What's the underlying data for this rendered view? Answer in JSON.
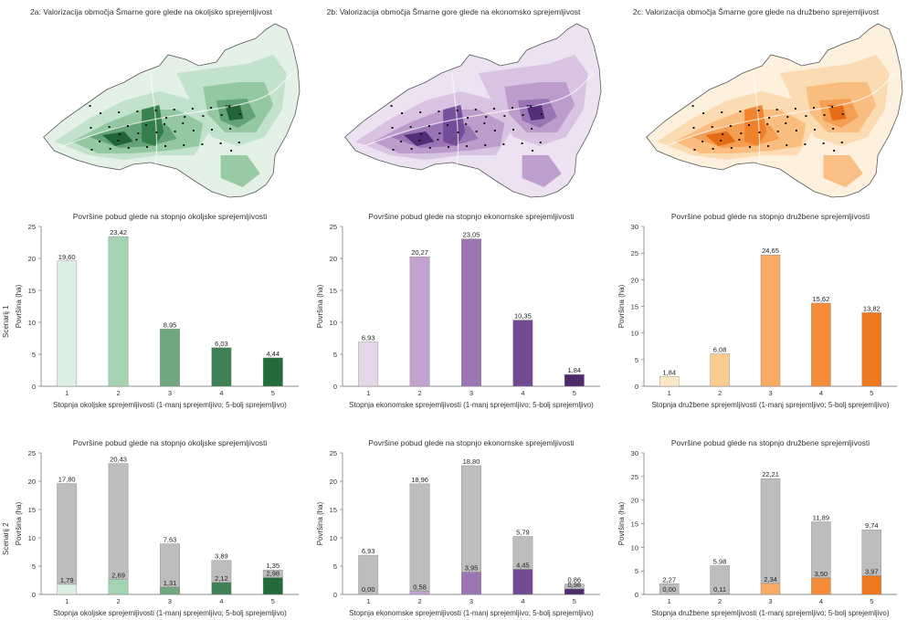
{
  "maps": [
    {
      "title": "2a: Valorizacija območja Šmarne gore glede na okoljsko sprejemljivost",
      "colors": [
        "#e3f1e7",
        "#bfe0c8",
        "#8fc59f",
        "#5e9f72",
        "#2f7a45",
        "#1a5e2f"
      ]
    },
    {
      "title": "2b: Valorizacija območja Šmarne gore glede na ekonomsko sprejemljivost",
      "colors": [
        "#ede2f1",
        "#d6c0e0",
        "#b998ca",
        "#9670b2",
        "#6f4795",
        "#4b2670"
      ]
    },
    {
      "title": "2c: Valorizacija območja Šmarne gore glede na družbeno sprejemljivost",
      "colors": [
        "#fdf0dc",
        "#fbd9ad",
        "#f8b97a",
        "#f39a4d",
        "#ee7d24",
        "#e2660f"
      ]
    }
  ],
  "row_labels": {
    "scenario1": "Scenarij 1",
    "scenario2": "Scenarij 2"
  },
  "chart_data": [
    {
      "type": "bar",
      "title": "Površine pobud glede na stopnjo okoljske sprejemljivosti",
      "xlabel": "Stopnja okoljske sprejemljivosti (1-manj sprejemljivo; 5-bolj sprejemljivo)",
      "ylabel": "Površina (ha)",
      "ylim": [
        0,
        25
      ],
      "yticks": [
        0,
        5,
        10,
        15,
        20,
        25
      ],
      "categories": [
        "1",
        "2",
        "3",
        "4",
        "5"
      ],
      "values": [
        19.6,
        23.42,
        8.95,
        6.03,
        4.44
      ],
      "labels": [
        "19,60",
        "23,42",
        "8,95",
        "6,03",
        "4,44"
      ],
      "colors": [
        "#ddefe2",
        "#a4d3b1",
        "#6fa77f",
        "#3e8154",
        "#246b3a"
      ]
    },
    {
      "type": "bar",
      "title": "Površine pobud glede na stopnjo ekonomske sprejemljivosti",
      "xlabel": "Stopnja ekonomske sprejemljivosti (1-manj sprejemljivo; 5-bolj sprejemljivo)",
      "ylabel": "Površina (ha)",
      "ylim": [
        0,
        25
      ],
      "yticks": [
        0,
        5,
        10,
        15,
        20,
        25
      ],
      "categories": [
        "1",
        "2",
        "3",
        "4",
        "5"
      ],
      "values": [
        6.93,
        20.27,
        23.05,
        10.35,
        1.84
      ],
      "labels": [
        "6,93",
        "20,27",
        "23,05",
        "10,35",
        "1,84"
      ],
      "colors": [
        "#e6d6ea",
        "#c3a2cf",
        "#9b76b2",
        "#734a92",
        "#4f2a6b"
      ]
    },
    {
      "type": "bar",
      "title": "Površine pobud glede na stopnjo družbene sprejemljivosti",
      "xlabel": "Stopnja družbene sprejemljivosti (1-manj sprejemljivo; 5-bolj sprejemljivo)",
      "ylabel": "Površina (ha)",
      "ylim": [
        0,
        30
      ],
      "yticks": [
        0,
        5,
        10,
        15,
        20,
        25,
        30
      ],
      "categories": [
        "1",
        "2",
        "3",
        "4",
        "5"
      ],
      "values": [
        1.84,
        6.08,
        24.65,
        15.62,
        13.82
      ],
      "labels": [
        "1,84",
        "6,08",
        "24,65",
        "15,62",
        "13,82"
      ],
      "colors": [
        "#fde7c7",
        "#fbcb8f",
        "#f8aa63",
        "#f48c3a",
        "#ee7820"
      ]
    },
    {
      "type": "bar",
      "stacked": true,
      "title": "Površine pobud glede na stopnjo okoljske sprejemljivosti",
      "xlabel": "Stopnja okoljske sprejemljivosti (1-manj sprejemljivo; 5-bolj sprejemljivo)",
      "ylabel": "Površina (ha)",
      "ylim": [
        0,
        25
      ],
      "yticks": [
        0,
        5,
        10,
        15,
        20,
        25
      ],
      "categories": [
        "1",
        "2",
        "3",
        "4",
        "5"
      ],
      "series": [
        {
          "values": [
            1.79,
            2.69,
            1.31,
            2.12,
            2.98
          ],
          "labels": [
            "1,79",
            "2,69",
            "1,31",
            "2,12",
            "2,98"
          ],
          "colors": [
            "#ddefe2",
            "#a4d3b1",
            "#6fa77f",
            "#3e8154",
            "#246b3a"
          ]
        },
        {
          "values": [
            17.8,
            20.43,
            7.63,
            3.89,
            1.35
          ],
          "labels": [
            "17,80",
            "20,43",
            "7,63",
            "3,89",
            "1,35"
          ],
          "color": "#bdbdbd"
        }
      ]
    },
    {
      "type": "bar",
      "stacked": true,
      "title": "Površine pobud glede na stopnjo ekonomske sprejemljivosti",
      "xlabel": "Stopnja ekonomske sprejemljivosti (1-manj sprejemljivo; 5-bolj sprejemljivo)",
      "ylabel": "Površina (ha)",
      "ylim": [
        0,
        25
      ],
      "yticks": [
        0,
        5,
        10,
        15,
        20,
        25
      ],
      "categories": [
        "1",
        "2",
        "3",
        "4",
        "5"
      ],
      "series": [
        {
          "values": [
            0.0,
            0.58,
            3.95,
            4.45,
            0.98
          ],
          "labels": [
            "0,00",
            "0,58",
            "3,95",
            "4,45",
            "0,98"
          ],
          "colors": [
            "#e6d6ea",
            "#c3a2cf",
            "#9b76b2",
            "#734a92",
            "#4f2a6b"
          ]
        },
        {
          "values": [
            6.93,
            18.96,
            18.8,
            5.79,
            0.86
          ],
          "labels": [
            "6,93",
            "18,96",
            "18,80",
            "5,79",
            "0,86"
          ],
          "color": "#bdbdbd"
        }
      ]
    },
    {
      "type": "bar",
      "stacked": true,
      "title": "Površine pobud glede na stopnjo družbene sprejemljivosti",
      "xlabel": "Stopnja družbene sprejemljivosti (1-manj sprejemljivo; 5-bolj sprejemljivo)",
      "ylabel": "Površina (ha)",
      "ylim": [
        0,
        30
      ],
      "yticks": [
        0,
        5,
        10,
        15,
        20,
        25,
        30
      ],
      "categories": [
        "1",
        "2",
        "3",
        "4",
        "5"
      ],
      "series": [
        {
          "values": [
            0.0,
            0.11,
            2.34,
            3.5,
            3.97
          ],
          "labels": [
            "0,00",
            "0,11",
            "2,34",
            "3,50",
            "3,97"
          ],
          "colors": [
            "#fde7c7",
            "#fbcb8f",
            "#f8aa63",
            "#f48c3a",
            "#ee7820"
          ]
        },
        {
          "values": [
            2.27,
            5.98,
            22.21,
            11.89,
            9.74
          ],
          "labels": [
            "2,27",
            "5,98",
            "22,21",
            "11,89",
            "9,74"
          ],
          "color": "#bdbdbd"
        }
      ]
    }
  ]
}
